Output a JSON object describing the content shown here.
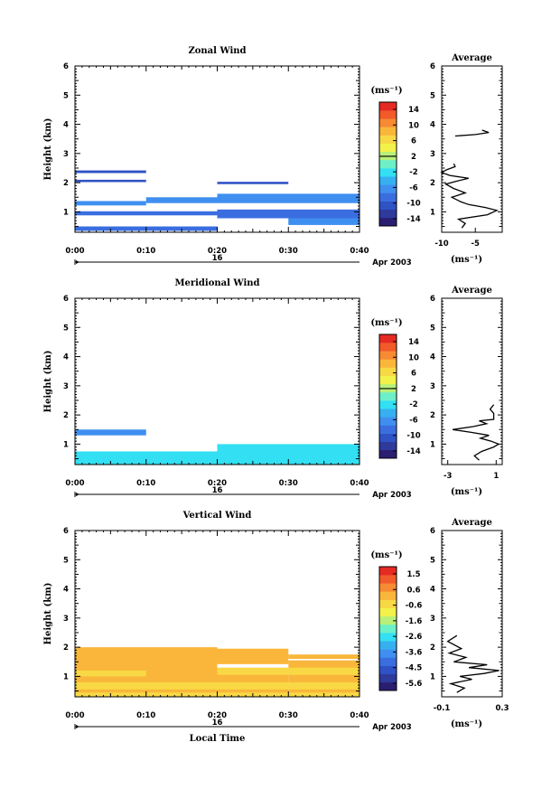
{
  "colors": [
    "#2a1e70",
    "#2e3a9c",
    "#2f52c4",
    "#3a6ee0",
    "#3f8ff0",
    "#36b0f0",
    "#33dff2",
    "#6cf0c8",
    "#b8f07a",
    "#f2f24a",
    "#f8d844",
    "#f9b63a",
    "#f78a32",
    "#f25a2a",
    "#e52a22"
  ],
  "chart_data": [
    {
      "type": "heatmap",
      "name": "zonal",
      "title": "Zonal Wind",
      "ylabel": "Height (km)",
      "xlabel": "",
      "ylim": [
        0.3,
        6
      ],
      "yticks": [
        1,
        2,
        3,
        4,
        5,
        6
      ],
      "xticks": [
        "0:00",
        "0:10",
        "0:20",
        "0:30",
        "0:40"
      ],
      "date_row": {
        "day": "16",
        "month_year": "Apr 2003"
      },
      "colorbar": {
        "unit": "(ms⁻¹)",
        "range": [
          -16,
          16
        ],
        "labels": [
          "14",
          "10",
          "6",
          "2",
          "-2",
          "-6",
          "-10",
          "-14"
        ],
        "contour_level": 2
      },
      "cells": [
        {
          "t0": 0,
          "t1": 10,
          "h0": 2.33,
          "h1": 2.42,
          "v": -11
        },
        {
          "t0": 0,
          "t1": 10,
          "h0": 2.02,
          "h1": 2.1,
          "v": -11
        },
        {
          "t0": 20,
          "t1": 30,
          "h0": 1.95,
          "h1": 2.03,
          "v": -11
        },
        {
          "t0": 0,
          "t1": 10,
          "h0": 1.22,
          "h1": 1.37,
          "v": -6
        },
        {
          "t0": 10,
          "t1": 20,
          "h0": 1.3,
          "h1": 1.5,
          "v": -7
        },
        {
          "t0": 20,
          "t1": 40,
          "h0": 1.3,
          "h1": 1.62,
          "v": -7
        },
        {
          "t0": 0,
          "t1": 40,
          "h0": 0.88,
          "h1": 1.02,
          "v": -9
        },
        {
          "t0": 20,
          "t1": 40,
          "h0": 0.78,
          "h1": 1.08,
          "v": -8
        },
        {
          "t0": 30,
          "t1": 40,
          "h0": 0.55,
          "h1": 0.78,
          "v": -7
        },
        {
          "t0": 0,
          "t1": 20,
          "h0": 0.35,
          "h1": 0.5,
          "v": -8
        }
      ],
      "profile": {
        "title": "Average",
        "xlabel": "(ms⁻¹)",
        "xlim": [
          -10,
          -1
        ],
        "xticks": [
          -10,
          -5
        ],
        "ylim": [
          0.3,
          6
        ],
        "yticks": [
          1,
          2,
          3,
          4,
          5,
          6
        ],
        "x": [
          -7,
          -6.5,
          -7.5,
          -3.2,
          -1.8,
          -3.5,
          -6,
          -7.2,
          -8.5,
          -6.5,
          -8.2,
          -9.4,
          -7.8,
          -6,
          -8.8,
          -10,
          -9.2,
          -8,
          -8.2,
          -8,
          -5,
          -3,
          -4
        ],
        "y": [
          0.45,
          0.6,
          0.75,
          0.9,
          1.05,
          1.15,
          1.25,
          1.35,
          1.5,
          1.65,
          1.8,
          1.95,
          2.05,
          2.15,
          2.25,
          2.35,
          2.45,
          2.55,
          2.65,
          3.6,
          3.65,
          3.72,
          3.8
        ]
      }
    },
    {
      "type": "heatmap",
      "name": "meridional",
      "title": "Meridional Wind",
      "ylabel": "Height (km)",
      "xlabel": "",
      "ylim": [
        0.3,
        6
      ],
      "yticks": [
        1,
        2,
        3,
        4,
        5,
        6
      ],
      "xticks": [
        "0:00",
        "0:10",
        "0:20",
        "0:30",
        "0:40"
      ],
      "date_row": {
        "day": "16",
        "month_year": "Apr 2003"
      },
      "colorbar": {
        "unit": "(ms⁻¹)",
        "range": [
          -16,
          16
        ],
        "labels": [
          "14",
          "10",
          "6",
          "2",
          "-2",
          "-6",
          "-10",
          "-14"
        ],
        "contour_level": 2
      },
      "cells": [
        {
          "t0": 0,
          "t1": 10,
          "h0": 1.3,
          "h1": 1.5,
          "v": -6
        },
        {
          "t0": 0,
          "t1": 20,
          "h0": 0.3,
          "h1": 0.75,
          "v": -3
        },
        {
          "t0": 20,
          "t1": 40,
          "h0": 0.3,
          "h1": 1.0,
          "v": -3
        }
      ],
      "profile": {
        "title": "Average",
        "xlabel": "(ms⁻¹)",
        "xlim": [
          -3.5,
          1.5
        ],
        "xticks": [
          -3,
          1
        ],
        "ylim": [
          0.3,
          6
        ],
        "yticks": [
          1,
          2,
          3,
          4,
          5,
          6
        ],
        "x": [
          -0.4,
          -0.8,
          -0.2,
          0.8,
          1.2,
          0.6,
          -0.3,
          0.4,
          -1.0,
          -2.6,
          -0.9,
          0.2,
          -0.4,
          0.8,
          0.8,
          0.5,
          0.8
        ],
        "y": [
          0.45,
          0.6,
          0.75,
          0.9,
          1.0,
          1.1,
          1.2,
          1.3,
          1.4,
          1.5,
          1.6,
          1.7,
          1.8,
          1.85,
          2.05,
          2.2,
          2.35
        ]
      }
    },
    {
      "type": "heatmap",
      "name": "vertical",
      "title": "Vertical Wind",
      "ylabel": "Height (km)",
      "xlabel": "Local Time",
      "ylim": [
        0.3,
        6
      ],
      "yticks": [
        1,
        2,
        3,
        4,
        5,
        6
      ],
      "xticks": [
        "0:00",
        "0:10",
        "0:20",
        "0:30",
        "0:40"
      ],
      "date_row": {
        "day": "16",
        "month_year": "Apr 2003"
      },
      "colorbar": {
        "unit": "(ms⁻¹)",
        "range": [
          -6,
          2
        ],
        "labels": [
          "1.5",
          "0.6",
          "-0.6",
          "-1.6",
          "-2.6",
          "-3.6",
          "-4.5",
          "-5.6"
        ],
        "contour_level": null
      },
      "cells": [
        {
          "t0": 0,
          "t1": 20,
          "h0": 0.3,
          "h1": 2.0,
          "v": 0.3
        },
        {
          "t0": 20,
          "t1": 30,
          "h0": 0.3,
          "h1": 1.95,
          "v": 0.3
        },
        {
          "t0": 30,
          "t1": 40,
          "h0": 0.3,
          "h1": 1.75,
          "v": 0.3
        },
        {
          "t0": 0,
          "t1": 40,
          "h0": 0.55,
          "h1": 0.8,
          "v": -0.4
        },
        {
          "t0": 0,
          "t1": 40,
          "h0": 0.3,
          "h1": 0.45,
          "v": -0.4
        },
        {
          "t0": 0,
          "t1": 10,
          "h0": 1.0,
          "h1": 1.2,
          "v": -0.4
        },
        {
          "t0": 20,
          "t1": 40,
          "h0": 1.05,
          "h1": 1.3,
          "v": -0.3
        }
      ],
      "gaps": [
        {
          "t0": 20,
          "t1": 30,
          "h0": 1.3,
          "h1": 1.42
        },
        {
          "t0": 30,
          "t1": 40,
          "h0": 1.55,
          "h1": 1.6
        }
      ],
      "profile": {
        "title": "Average",
        "xlabel": "(ms⁻¹)",
        "xlim": [
          -0.1,
          0.3
        ],
        "xticks": [
          -0.1,
          0.3
        ],
        "ylim": [
          0.3,
          6
        ],
        "yticks": [
          1,
          2,
          3,
          4,
          5,
          6
        ],
        "x": [
          0.0,
          0.05,
          -0.04,
          0.1,
          0.02,
          0.18,
          0.28,
          0.08,
          0.2,
          -0.02,
          0.06,
          -0.05,
          0.03,
          -0.06,
          0.0
        ],
        "y": [
          0.45,
          0.6,
          0.75,
          0.9,
          1.0,
          1.1,
          1.2,
          1.3,
          1.4,
          1.5,
          1.65,
          1.8,
          1.95,
          2.2,
          2.4
        ]
      }
    }
  ]
}
